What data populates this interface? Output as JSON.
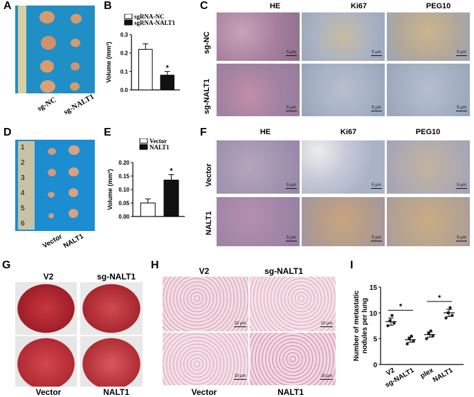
{
  "panels": {
    "A": {
      "letter": "A",
      "labels": [
        "sg-NC",
        "sg-NALT1"
      ]
    },
    "B": {
      "letter": "B"
    },
    "C": {
      "letter": "C",
      "columns": [
        "HE",
        "Ki67",
        "PEG10"
      ],
      "rows": [
        "sg-NC",
        "sg-NALT1"
      ],
      "scale": "5 μm"
    },
    "D": {
      "letter": "D",
      "labels": [
        "Vector",
        "NALT1"
      ],
      "ruler_numbers": [
        "1",
        "2",
        "3",
        "4",
        "5",
        "6"
      ]
    },
    "E": {
      "letter": "E"
    },
    "F": {
      "letter": "F",
      "columns": [
        "HE",
        "Ki67",
        "PEG10"
      ],
      "rows": [
        "Vector",
        "NALT1"
      ],
      "scale": "5 μm"
    },
    "G": {
      "letter": "G",
      "top": [
        "V2",
        "sg-NALT1"
      ],
      "bottom": [
        "Vector",
        "NALT1"
      ]
    },
    "H": {
      "letter": "H",
      "top": [
        "V2",
        "sg-NALT1"
      ],
      "bottom": [
        "Vector",
        "NALT1"
      ],
      "scale": "10 μm"
    },
    "I": {
      "letter": "I"
    }
  },
  "chart_data": [
    {
      "type": "bar",
      "panel": "B",
      "categories": [
        "sgRNA-NC",
        "sgRNA-NALT1"
      ],
      "series": [
        {
          "name": "sgRNA-NC",
          "values": [
            0.22,
            null
          ],
          "color": "#ffffff"
        },
        {
          "name": "sgRNA-NALT1",
          "values": [
            null,
            0.08
          ],
          "color": "#111111"
        }
      ],
      "values": [
        0.22,
        0.08
      ],
      "errors": [
        0.03,
        0.02
      ],
      "ylabel": "Volume (mm³)",
      "ylim": [
        0,
        0.3
      ],
      "yticks": [
        "0.0",
        "0.1",
        "0.2",
        "0.3"
      ],
      "significance": "*",
      "legend": "top"
    },
    {
      "type": "bar",
      "panel": "E",
      "categories": [
        "Vector",
        "NALT1"
      ],
      "series": [
        {
          "name": "Vector",
          "values": [
            0.05,
            null
          ],
          "color": "#ffffff"
        },
        {
          "name": "NALT1",
          "values": [
            null,
            0.135
          ],
          "color": "#111111"
        }
      ],
      "values": [
        0.05,
        0.135
      ],
      "errors": [
        0.015,
        0.02
      ],
      "ylabel": "Volume (mm³)",
      "ylim": [
        0,
        0.2
      ],
      "yticks": [
        "0.00",
        "0.05",
        "0.10",
        "0.15",
        "0.20"
      ],
      "significance": "*",
      "legend": "top"
    },
    {
      "type": "scatter",
      "panel": "I",
      "categories": [
        "V2",
        "sg-NALT1",
        "plex",
        "NALT1"
      ],
      "points": [
        [
          7.5,
          8.5,
          9.5,
          8
        ],
        [
          4,
          5,
          5.5,
          4.5
        ],
        [
          5,
          6,
          6.5,
          5.5
        ],
        [
          9,
          10,
          11,
          9.5
        ]
      ],
      "means": [
        8.3,
        4.8,
        5.8,
        10.0
      ],
      "sem": [
        0.7,
        0.5,
        0.5,
        0.7
      ],
      "ylabel": "Number of metastatic nodules per lung",
      "ylim": [
        0,
        15
      ],
      "yticks": [
        "0",
        "5",
        "10",
        "15"
      ],
      "comparisons": [
        {
          "from": 0,
          "to": 1,
          "label": "*"
        },
        {
          "from": 2,
          "to": 3,
          "label": "*"
        }
      ]
    }
  ]
}
